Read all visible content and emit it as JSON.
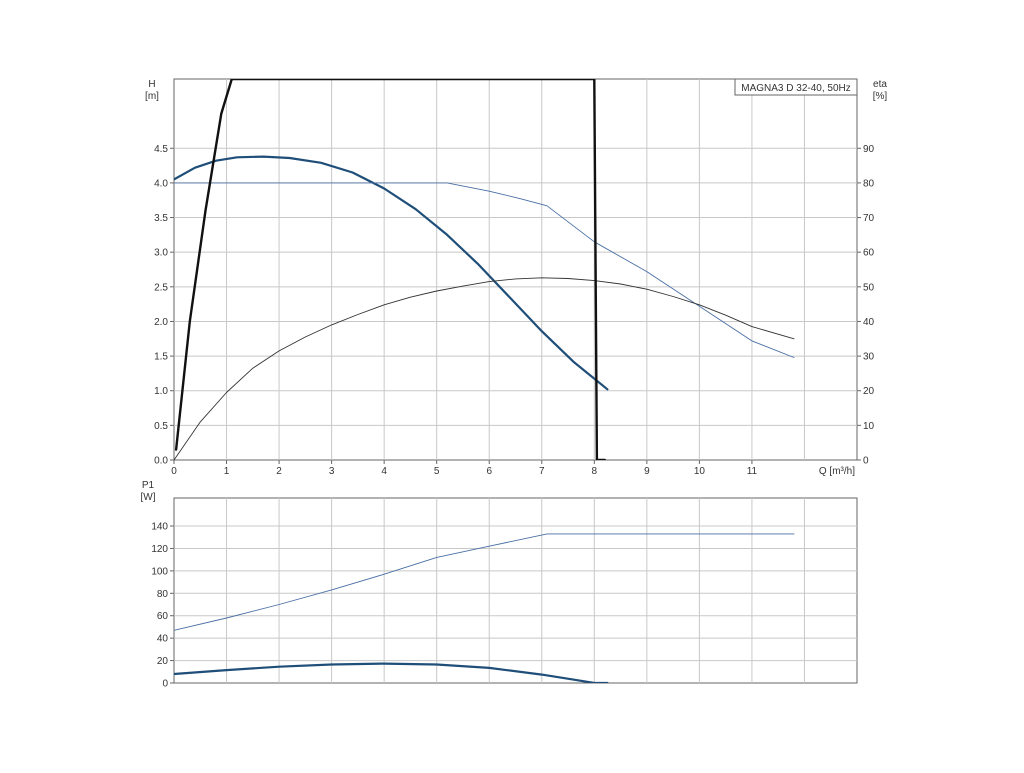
{
  "chart_data": [
    {
      "type": "line",
      "title": "MAGNA3 D 32-40, 50Hz",
      "xlabel": "Q [m³/h]",
      "ylabel": "H\n[m]",
      "ylabel_right": "eta\n[%]",
      "xlim": [
        0,
        13
      ],
      "ylim": [
        0,
        5.5
      ],
      "ylim_right": [
        0,
        110
      ],
      "xticks": [
        0,
        1,
        2,
        3,
        4,
        5,
        6,
        7,
        8,
        9,
        10,
        11
      ],
      "yticks": [
        0.0,
        0.5,
        1.0,
        1.5,
        2.0,
        2.5,
        3.0,
        3.5,
        4.0,
        4.5
      ],
      "yticks_right": [
        0,
        10,
        20,
        30,
        40,
        50,
        60,
        70,
        80,
        90
      ],
      "grid": true,
      "series": [
        {
          "axis": "left",
          "color": "#1f4e79",
          "weight": "bold",
          "x": [
            0,
            0.4,
            0.8,
            1.2,
            1.7,
            2.2,
            2.8,
            3.4,
            4,
            4.6,
            5.2,
            5.8,
            6.4,
            7,
            7.6,
            8.25
          ],
          "y": [
            4.05,
            4.22,
            4.32,
            4.37,
            4.38,
            4.36,
            4.29,
            4.15,
            3.92,
            3.62,
            3.25,
            2.82,
            2.34,
            1.86,
            1.42,
            1.02
          ]
        },
        {
          "axis": "left",
          "color": "#4a6fa5",
          "weight": "thin",
          "x": [
            0,
            1,
            2,
            3,
            4,
            5.2,
            6,
            6.6,
            7.1,
            8,
            9,
            10,
            11,
            11.8
          ],
          "y": [
            4.0,
            4.0,
            4.0,
            4.0,
            4.0,
            4.0,
            3.88,
            3.77,
            3.67,
            3.15,
            2.72,
            2.22,
            1.72,
            1.48
          ]
        },
        {
          "axis": "right",
          "color": "#333333",
          "weight": "thin",
          "x": [
            0,
            0.5,
            1,
            1.5,
            2,
            2.5,
            3,
            3.5,
            4,
            4.5,
            5,
            5.5,
            6,
            6.5,
            7,
            7.5,
            8,
            8.5,
            9,
            9.5,
            10,
            10.5,
            11,
            11.8
          ],
          "y": [
            0,
            11,
            19.5,
            26.5,
            31.5,
            35.5,
            39,
            42,
            44.8,
            47,
            48.8,
            50.2,
            51.5,
            52.3,
            52.6,
            52.4,
            51.8,
            50.8,
            49.3,
            47.2,
            44.8,
            41.8,
            38.5,
            35
          ]
        },
        {
          "axis": "left",
          "color": "#111111",
          "weight": "heavy",
          "x": [
            0.04,
            0.3,
            0.6,
            0.9,
            1.1,
            8.0,
            8.05,
            8.2
          ],
          "y": [
            0.15,
            2.0,
            3.6,
            5.0,
            5.5,
            5.5,
            0,
            0
          ]
        }
      ]
    },
    {
      "type": "line",
      "ylabel": "P1\n[W]",
      "xlim": [
        0,
        13
      ],
      "ylim": [
        0,
        165
      ],
      "yticks": [
        0,
        20,
        40,
        60,
        80,
        100,
        120,
        140
      ],
      "grid": true,
      "series": [
        {
          "color": "#4a6fa5",
          "weight": "thin",
          "x": [
            0,
            1,
            2,
            3,
            4,
            5,
            6,
            7.1,
            8,
            9,
            10,
            11,
            11.8
          ],
          "y": [
            47,
            58,
            70,
            83,
            97,
            112,
            122,
            133,
            133,
            133,
            133,
            133,
            133
          ]
        },
        {
          "color": "#1f4e79",
          "weight": "bold",
          "x": [
            0,
            1,
            2,
            3,
            4,
            5,
            6,
            7,
            7.6,
            8.0,
            8.25
          ],
          "y": [
            8,
            11.5,
            14.5,
            16.5,
            17.3,
            16.5,
            13.5,
            7.5,
            3,
            0,
            0
          ]
        }
      ]
    }
  ]
}
